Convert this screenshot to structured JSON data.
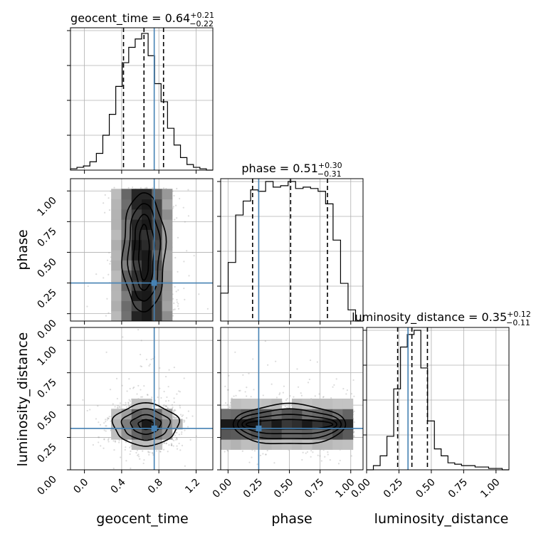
{
  "chart_data": {
    "type": "corner",
    "parameters": [
      {
        "name": "geocent_time",
        "range": [
          -0.15,
          1.38
        ],
        "ticks": [
          0.0,
          0.4,
          0.8,
          1.2
        ],
        "tick_labels": [
          "0.0",
          "0.4",
          "0.8",
          "1.2"
        ]
      },
      {
        "name": "phase",
        "range": [
          -0.06,
          1.1
        ],
        "ticks": [
          0.0,
          0.25,
          0.5,
          0.75,
          1.0
        ],
        "tick_labels": [
          "0.00",
          "0.25",
          "0.50",
          "0.75",
          "1.00"
        ]
      },
      {
        "name": "luminosity_distance",
        "range": [
          0.0,
          1.1
        ],
        "ticks": [
          0.0,
          0.25,
          0.5,
          0.75,
          1.0
        ],
        "tick_labels": [
          "0.00",
          "0.25",
          "0.50",
          "0.75",
          "1.00"
        ]
      }
    ],
    "titles": [
      {
        "param": "geocent_time",
        "text": "geocent_time = 0.64",
        "plus": "+0.21",
        "minus": "−0.22"
      },
      {
        "param": "phase",
        "text": "phase = 0.51",
        "plus": "+0.30",
        "minus": "−0.31"
      },
      {
        "param": "luminosity_distance",
        "text": "luminosity_distance = 0.35",
        "plus": "+0.12",
        "minus": "−0.11"
      }
    ],
    "truths": {
      "geocent_time": 0.75,
      "phase": 0.25,
      "luminosity_distance": 0.32
    },
    "quantiles": {
      "geocent_time": [
        0.42,
        0.64,
        0.85
      ],
      "phase": [
        0.2,
        0.51,
        0.81
      ],
      "luminosity_distance": [
        0.24,
        0.35,
        0.47
      ]
    },
    "histograms": {
      "geocent_time": {
        "bin_range": [
          -0.15,
          1.38
        ],
        "counts": [
          0.01,
          0.02,
          0.03,
          0.06,
          0.12,
          0.25,
          0.4,
          0.6,
          0.77,
          0.88,
          0.94,
          0.98,
          0.82,
          0.62,
          0.49,
          0.3,
          0.18,
          0.09,
          0.04,
          0.02,
          0.01,
          0.0
        ]
      },
      "phase": {
        "bin_range": [
          -0.06,
          1.1
        ],
        "counts": [
          0.2,
          0.42,
          0.76,
          0.86,
          0.94,
          0.93,
          1.0,
          0.96,
          0.97,
          1.0,
          0.95,
          0.96,
          0.95,
          0.93,
          0.84,
          0.58,
          0.27,
          0.08,
          0.0
        ]
      },
      "luminosity_distance": {
        "bin_range": [
          0.0,
          1.1
        ],
        "counts": [
          0.0,
          0.03,
          0.1,
          0.24,
          0.58,
          0.88,
          0.97,
          1.0,
          0.73,
          0.35,
          0.15,
          0.1,
          0.05,
          0.04,
          0.03,
          0.03,
          0.02,
          0.02,
          0.01,
          0.01,
          0.0
        ]
      }
    },
    "pairs": [
      {
        "x": "geocent_time",
        "y": "phase",
        "center": [
          0.64,
          0.51
        ],
        "sigma": [
          0.18,
          0.28
        ],
        "corr": 0.0
      },
      {
        "x": "geocent_time",
        "y": "luminosity_distance",
        "center": [
          0.66,
          0.35
        ],
        "sigma": [
          0.2,
          0.09
        ],
        "corr": 0.0
      },
      {
        "x": "phase",
        "y": "luminosity_distance",
        "center": [
          0.5,
          0.35
        ],
        "sigma": [
          0.28,
          0.09
        ],
        "corr": 0.0
      }
    ],
    "grid": true
  }
}
